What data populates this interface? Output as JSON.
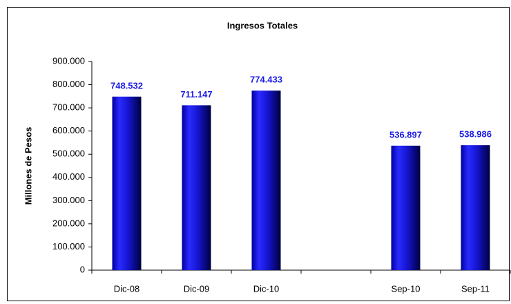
{
  "chart_data": {
    "type": "bar",
    "title": "Ingresos Totales",
    "y_label": "Millones de Pesos",
    "categories": [
      "Dic-08",
      "Dic-09",
      "Dic-10",
      null,
      "Sep-10",
      "Sep-11"
    ],
    "values": [
      748532,
      711147,
      774433,
      null,
      536897,
      538986
    ],
    "value_labels": [
      "748.532",
      "711.147",
      "774.433",
      null,
      "536.897",
      "538.986"
    ],
    "color": "#1a1ae6",
    "label_color": "#1a1ae6",
    "ylim": [
      0,
      900000
    ],
    "yticks": [
      0,
      {
        "value": 100000,
        "label": "100.000"
      },
      {
        "value": 200000,
        "label": "200.000"
      },
      {
        "value": 300000,
        "label": "300.000"
      },
      {
        "value": 400000,
        "label": "400.000"
      },
      {
        "value": 500000,
        "label": "500.000"
      },
      {
        "value": 600000,
        "label": "600.000"
      },
      {
        "value": 700000,
        "label": "700.000"
      },
      {
        "value": 800000,
        "label": "800.000"
      },
      {
        "value": 900000,
        "label": "900.000"
      }
    ],
    "grid": false
  }
}
